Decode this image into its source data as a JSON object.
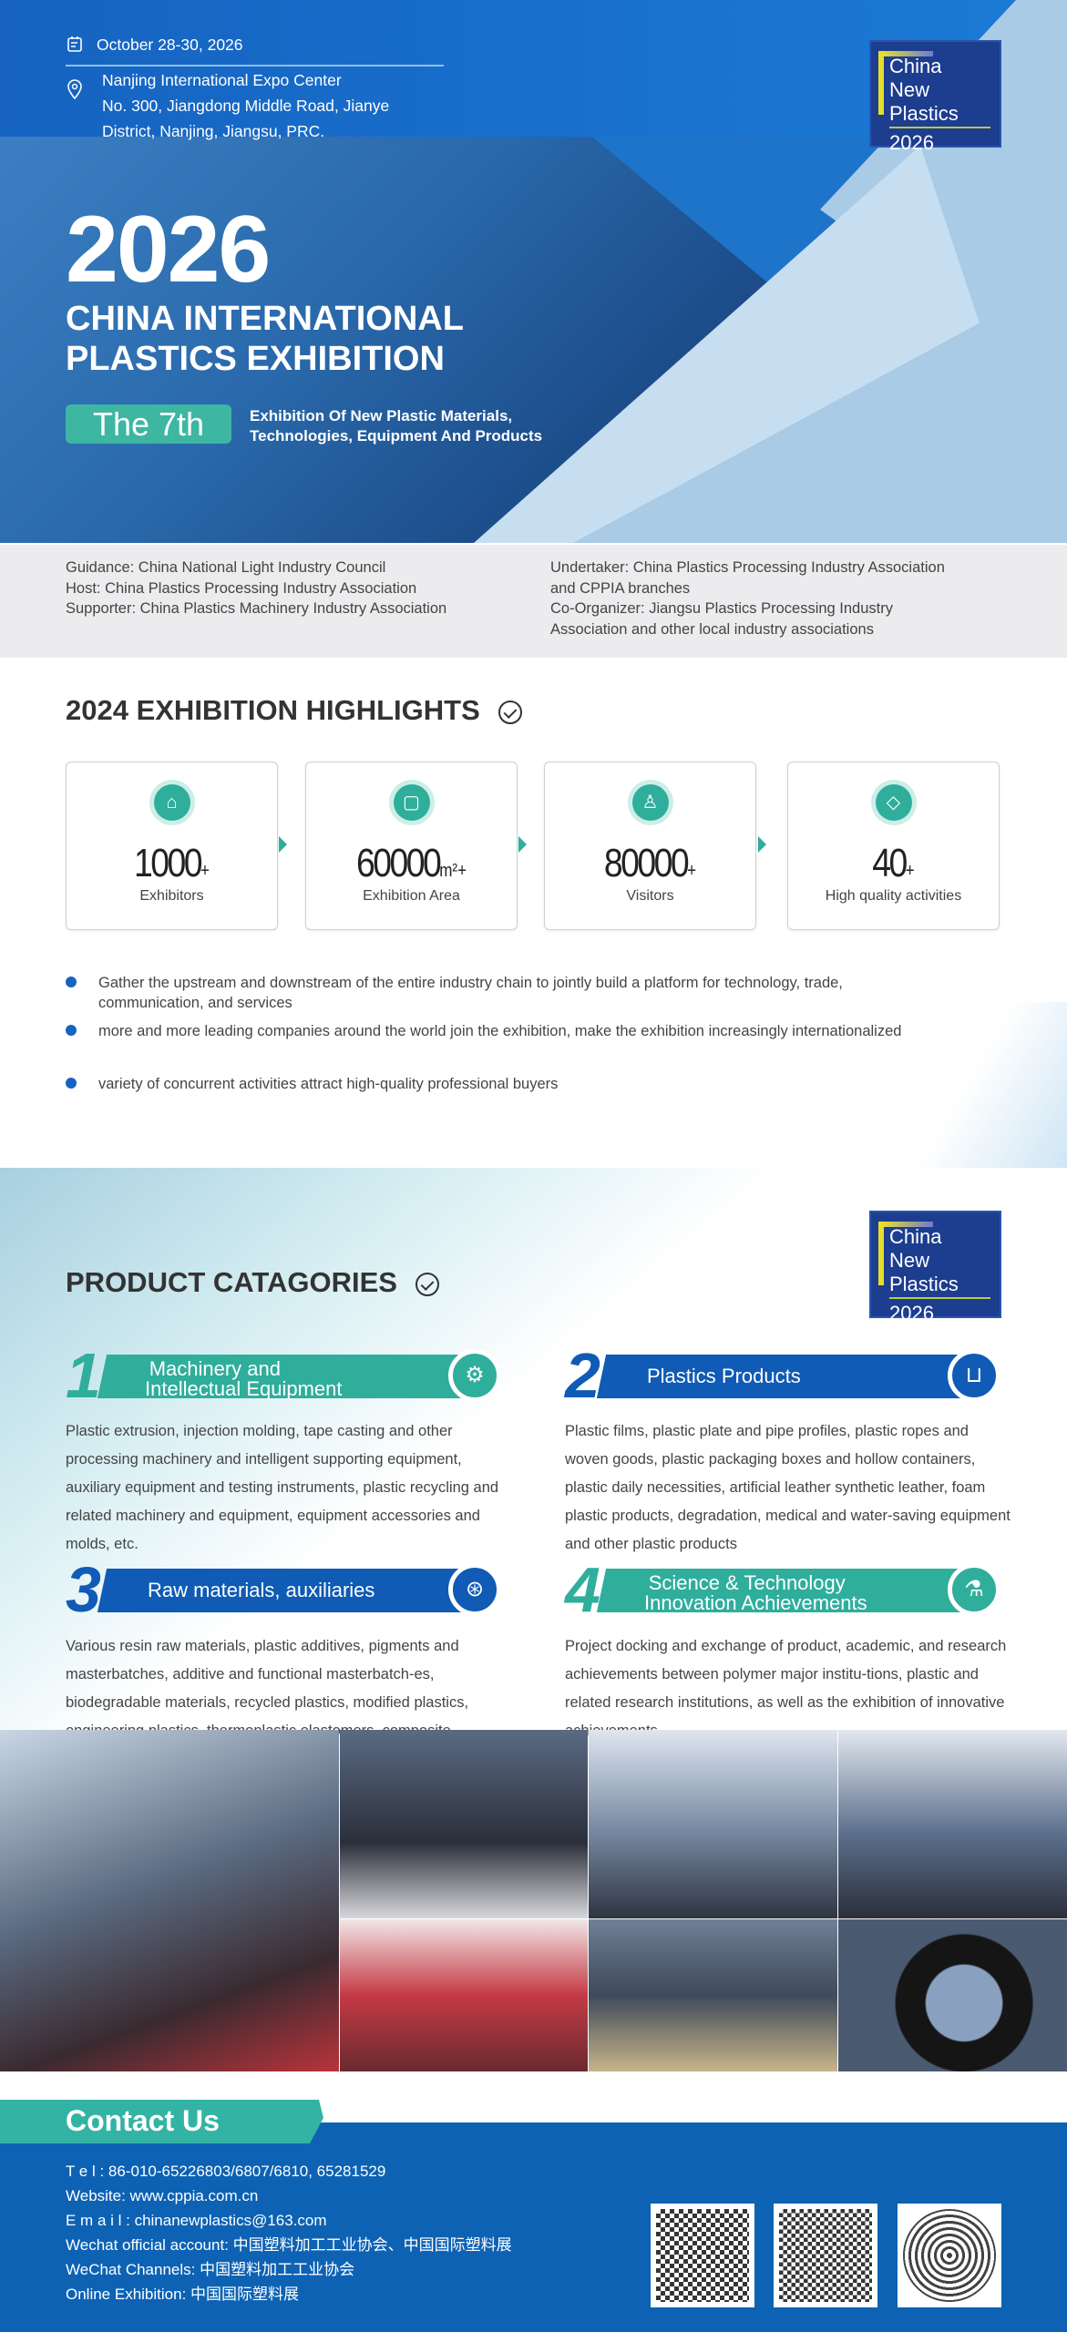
{
  "hero": {
    "date": "October 28-30, 2026",
    "venue_lines": [
      "Nanjing International Expo Center",
      "No. 300, Jiangdong Middle Road, Jianye",
      "District, Nanjing, Jiangsu, PRC."
    ],
    "year": "2026",
    "title_lines": [
      "CHINA INTERNATIONAL",
      "PLASTICS EXHIBITION"
    ],
    "edition": "The 7th",
    "subtitle_lines": [
      "Exhibition Of New Plastic Materials,",
      "Technologies, Equipment And Products"
    ]
  },
  "logo": {
    "lines": [
      "China",
      "New",
      "Plastics",
      "2026"
    ]
  },
  "organizers": {
    "left": [
      "Guidance: China National Light Industry Council",
      "Host:  China Plastics Processing Industry Association",
      "Supporter:  China Plastics Machinery Industry Association"
    ],
    "right": [
      "Undertaker:  China Plastics Processing Industry Association",
      "and CPPIA branches",
      "Co-Organizer:  Jiangsu Plastics Processing Industry",
      "Association and other local industry associations"
    ]
  },
  "highlights": {
    "heading": "2024 EXHIBITION HIGHLIGHTS",
    "cards": [
      {
        "value": "1000",
        "suffix": "+",
        "unit": "",
        "label": "Exhibitors",
        "icon": "basket-icon"
      },
      {
        "value": "60000",
        "suffix": "+",
        "unit": "m²",
        "label": "Exhibition Area",
        "icon": "area-icon"
      },
      {
        "value": "80000",
        "suffix": "+",
        "unit": "",
        "label": "Visitors",
        "icon": "users-icon"
      },
      {
        "value": "40",
        "suffix": "+",
        "unit": "",
        "label": "High quality activities",
        "icon": "diamond-icon"
      }
    ],
    "bullets": [
      "Gather the upstream and downstream of the entire industry chain to jointly build a platform for technology, trade, communication, and services",
      "more and more leading companies around the world join the exhibition, make the exhibition increasingly internationalized",
      "variety of concurrent activities attract high-quality professional buyers"
    ]
  },
  "products": {
    "heading": "PRODUCT CATAGORIES",
    "categories": [
      {
        "num": "1",
        "title_lines": [
          "Machinery and",
          "Intellectual Equipment"
        ],
        "desc": "Plastic extrusion, injection molding, tape casting and other processing machinery and intelligent supporting equipment, auxiliary equipment and testing instruments, plastic recycling and related machinery and equipment, equipment accessories and molds, etc."
      },
      {
        "num": "2",
        "title_lines": [
          "Plastics Products",
          ""
        ],
        "desc": "Plastic films, plastic plate and pipe profiles, plastic ropes and woven goods, plastic packaging boxes and hollow containers, plastic daily necessities, artificial leather synthetic leather, foam plastic products, degradation, medical and water-saving equipment and other plastic products"
      },
      {
        "num": "3",
        "title_lines": [
          "Raw materials, auxiliaries",
          ""
        ],
        "desc": "Various resin raw materials, plastic additives, pigments and masterbatches, additive and functional masterbatch-es, biodegradable materials, recycled plastics, modified plastics, engineering plastics, thermoplastic elastomers, composite materials and reinforced fibers, etc"
      },
      {
        "num": "4",
        "title_lines": [
          "Science & Technology",
          "Innovation Achievements"
        ],
        "desc": "Project docking and exchange of product, academic, and research achievements between polymer major institu-tions, plastic and related research institutions, as well as the exhibition of innovative achievements"
      }
    ]
  },
  "contact": {
    "heading": "Contact Us",
    "lines": [
      "T e l : 86-010-65226803/6807/6810, 65281529",
      "Website: www.cppia.com.cn",
      "E m a i l : chinanewplastics@163.com",
      "Wechat official account: 中国塑料加工工业协会、中国国际塑料展",
      "WeChat Channels: 中国塑料加工工业协会",
      "Online Exhibition: 中国国际塑料展"
    ]
  },
  "colors": {
    "primary_blue": "#0f5bb5",
    "teal": "#2fae9c",
    "hero_blue": "#1e74c9",
    "logo_navy": "#1d3d8f"
  }
}
